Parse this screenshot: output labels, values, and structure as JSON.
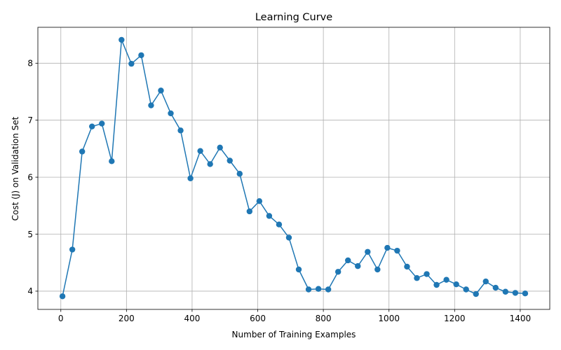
{
  "chart_data": {
    "type": "line",
    "title": "Learning Curve",
    "xlabel": "Number of Training Examples",
    "ylabel": "Cost (J) on Validation Set",
    "xlim": [
      -70,
      1490
    ],
    "ylim": [
      3.68,
      8.63
    ],
    "xticks": [
      0,
      200,
      400,
      600,
      800,
      1000,
      1200,
      1400
    ],
    "yticks": [
      4,
      5,
      6,
      7,
      8
    ],
    "grid": true,
    "marker": "circle",
    "color": "#1f77b4",
    "series": [
      {
        "x": [
          5,
          35,
          65,
          95,
          125,
          155,
          185,
          215,
          245,
          275,
          305,
          335,
          365,
          395,
          425,
          455,
          485,
          515,
          545,
          575,
          605,
          635,
          665,
          695,
          725,
          755,
          785,
          815,
          845,
          875,
          905,
          935,
          965,
          995,
          1025,
          1055,
          1085,
          1115,
          1145,
          1175,
          1205,
          1235,
          1265,
          1295,
          1325,
          1355,
          1385,
          1415
        ],
        "values": [
          3.91,
          4.73,
          6.45,
          6.89,
          6.94,
          6.28,
          8.41,
          7.99,
          8.14,
          7.26,
          7.52,
          7.12,
          6.82,
          5.98,
          6.46,
          6.23,
          6.52,
          6.29,
          6.06,
          5.4,
          5.58,
          5.32,
          5.17,
          4.94,
          4.38,
          4.03,
          4.04,
          4.03,
          4.34,
          4.54,
          4.44,
          4.69,
          4.38,
          4.76,
          4.71,
          4.43,
          4.23,
          4.3,
          4.11,
          4.2,
          4.12,
          4.03,
          3.95,
          4.17,
          4.06,
          3.99,
          3.97,
          3.96
        ]
      }
    ]
  }
}
